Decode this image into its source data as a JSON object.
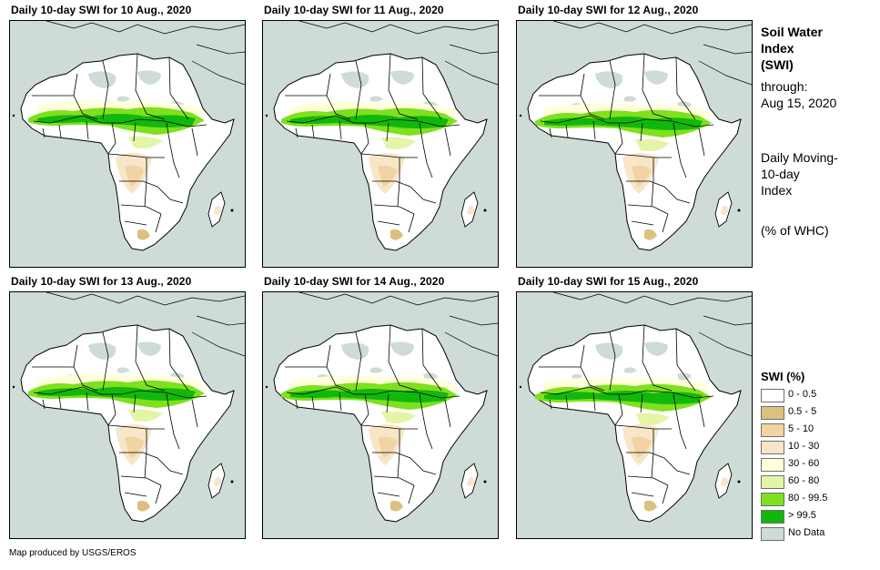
{
  "panels": [
    {
      "title": "Daily 10-day  SWI for 10 Aug., 2020"
    },
    {
      "title": "Daily 10-day  SWI for 11 Aug., 2020"
    },
    {
      "title": "Daily 10-day  SWI for 12 Aug., 2020"
    },
    {
      "title": "Daily 10-day  SWI for 13 Aug., 2020"
    },
    {
      "title": "Daily 10-day  SWI for 14 Aug., 2020"
    },
    {
      "title": "Daily 10-day  SWI for 15 Aug., 2020"
    }
  ],
  "side": {
    "title_line1": "Soil Water",
    "title_line2": "Index",
    "title_line3": "(SWI)",
    "through_label": "through:",
    "through_date": "Aug 15, 2020",
    "desc_line1": "Daily Moving-",
    "desc_line2": "10-day",
    "desc_line3": "Index",
    "units": "(% of WHC)"
  },
  "legend": {
    "title": "SWI (%)",
    "items": [
      {
        "label": "0 - 0.5",
        "color": "#ffffff"
      },
      {
        "label": "0.5 - 5",
        "color": "#dcc07f"
      },
      {
        "label": "5 - 10",
        "color": "#f2d3a3"
      },
      {
        "label": "10 - 30",
        "color": "#f7e6c8"
      },
      {
        "label": "30 - 60",
        "color": "#ffffd9"
      },
      {
        "label": "60 - 80",
        "color": "#e5f5a7"
      },
      {
        "label": "80 - 99.5",
        "color": "#7fe01e"
      },
      {
        "label": "> 99.5",
        "color": "#11b80c"
      },
      {
        "label": "No Data",
        "color": "#cfdcd6"
      }
    ]
  },
  "credit": "Map produced by USGS/EROS"
}
